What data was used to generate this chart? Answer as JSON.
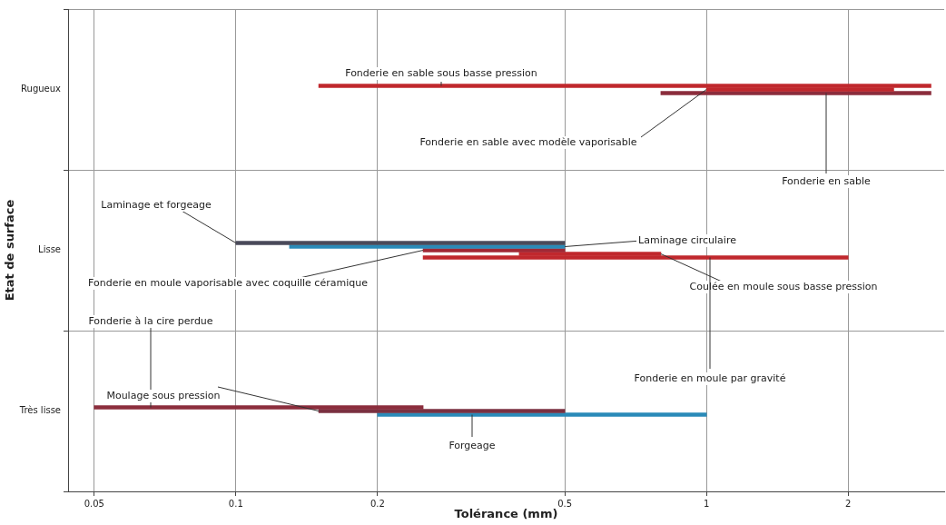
{
  "chart_data": {
    "type": "bar",
    "orientation": "horizontal",
    "xlabel": "Tolérance (mm)",
    "ylabel": "Etat de surface",
    "log": "x",
    "grid": true,
    "categories": [
      "Rugueux",
      "Lisse",
      "Très lisse"
    ],
    "xlim": [
      0.044,
      3.2
    ],
    "xticks": [
      0.05,
      0.1,
      0.2,
      0.5,
      1,
      2
    ],
    "series": [
      {
        "name": "Fonderie en sable sous basse pression",
        "color": "#c0282d",
        "base": [
          0.15,
          null,
          null
        ],
        "values": [
          2.85,
          null,
          null
        ]
      },
      {
        "name": "Fonderie en sable avec modèle vaporisable",
        "color": "#c0282d",
        "base": [
          1,
          null,
          null
        ],
        "values": [
          1.5,
          null,
          null
        ]
      },
      {
        "name": "Fonderie en sable",
        "color": "#8b2d3c",
        "base": [
          0.8,
          null,
          null
        ],
        "values": [
          2.2,
          null,
          null
        ]
      },
      {
        "name": "Laminage et forgeage",
        "color": "#4a4a5a",
        "base": [
          null,
          0.1,
          null
        ],
        "values": [
          null,
          0.4,
          null
        ]
      },
      {
        "name": "Laminage circulaire",
        "color": "#2a8ab8",
        "base": [
          null,
          0.13,
          null
        ],
        "values": [
          null,
          0.37,
          null
        ]
      },
      {
        "name": "Fonderie en moule vaporisable avec coquille céramique",
        "color": "#a02835",
        "base": [
          null,
          0.25,
          null
        ],
        "values": [
          null,
          0.25,
          null
        ]
      },
      {
        "name": "Coulée en moule sous basse pression",
        "color": "#c0282d",
        "base": [
          null,
          0.4,
          null
        ],
        "values": [
          null,
          0.4,
          null
        ]
      },
      {
        "name": "Fonderie en moule par gravité",
        "color": "#c0282d",
        "base": [
          null,
          0.25,
          null
        ],
        "values": [
          null,
          1.75,
          null
        ]
      },
      {
        "name": "Fonderie à la cire perdue",
        "color": "#8b2d3c",
        "base": [
          null,
          null,
          0.05
        ],
        "values": [
          null,
          null,
          0.2
        ]
      },
      {
        "name": "Moulage sous pression",
        "color": "#7a3040",
        "base": [
          null,
          null,
          0.15
        ],
        "values": [
          null,
          null,
          0.35
        ]
      },
      {
        "name": "Forgeage",
        "color": "#2a8ab8",
        "base": [
          null,
          null,
          0.2
        ],
        "values": [
          null,
          null,
          0.8
        ]
      }
    ]
  }
}
